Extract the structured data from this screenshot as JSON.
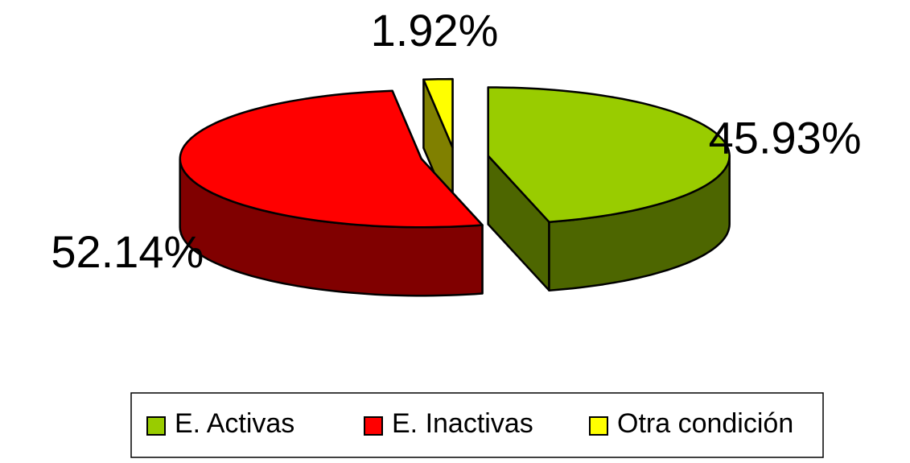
{
  "chart_data": {
    "type": "pie",
    "categories": [
      "E. Activas",
      "E. Inactivas",
      "Otra condición"
    ],
    "values": [
      45.93,
      52.14,
      1.92
    ],
    "value_labels": [
      "45.93%",
      "52.14%",
      "1.92%"
    ],
    "colors": [
      "#99cc00",
      "#ff0000",
      "#ffff00"
    ],
    "legend": "bottom"
  }
}
